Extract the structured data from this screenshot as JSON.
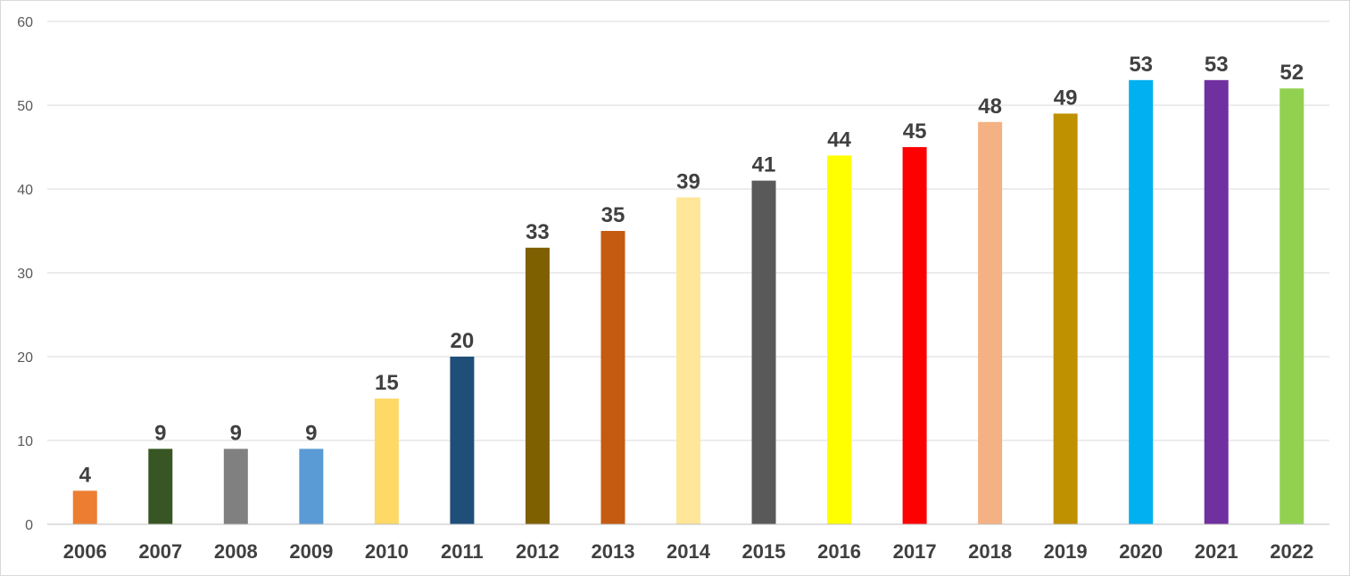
{
  "chart_data": {
    "type": "bar",
    "categories": [
      "2006",
      "2007",
      "2008",
      "2009",
      "2010",
      "2011",
      "2012",
      "2013",
      "2014",
      "2015",
      "2016",
      "2017",
      "2018",
      "2019",
      "2020",
      "2021",
      "2022"
    ],
    "values": [
      4,
      9,
      9,
      9,
      15,
      20,
      33,
      35,
      39,
      41,
      44,
      45,
      48,
      49,
      53,
      53,
      52
    ],
    "bar_colors": [
      "#ED7D31",
      "#375623",
      "#808080",
      "#5B9BD5",
      "#FFD966",
      "#1F4E79",
      "#7F6000",
      "#C55A11",
      "#FFE699",
      "#595959",
      "#FFFF00",
      "#FF0000",
      "#F4B183",
      "#BF9000",
      "#00B0F0",
      "#7030A0",
      "#92D050"
    ],
    "title": "",
    "xlabel": "",
    "ylabel": "",
    "ylim": [
      0,
      60
    ],
    "yticks": [
      0,
      10,
      20,
      30,
      40,
      50,
      60
    ],
    "grid": true,
    "legend": "none",
    "data_labels": true
  }
}
